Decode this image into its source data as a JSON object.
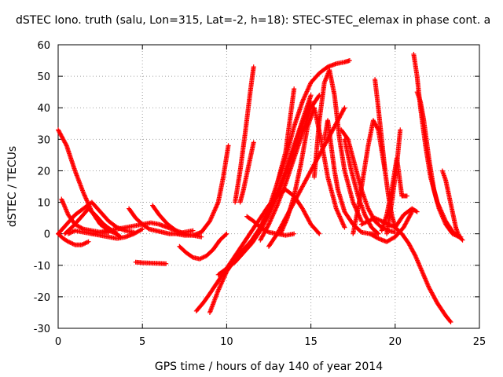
{
  "chart_data": {
    "type": "scatter",
    "title": "dSTEC Iono. truth (salu, Lon=315, Lat=-2, h=18): STEC-STEC_elemax in phase cont. a",
    "xlabel": "GPS time / hours of day 140 of year 2014",
    "ylabel": "dSTEC  / TECUs",
    "xlim": [
      0,
      25
    ],
    "ylim": [
      -30,
      60
    ],
    "xticks": [
      0,
      5,
      10,
      15,
      20,
      25
    ],
    "yticks": [
      -30,
      -20,
      -10,
      0,
      10,
      20,
      30,
      40,
      50,
      60
    ],
    "grid": true,
    "marker": "+",
    "color": "#ff0000",
    "series": [
      {
        "x": [
          0.0,
          0.5,
          1.0,
          1.5,
          2.0,
          2.5,
          3.0,
          3.5
        ],
        "y": [
          33,
          28,
          20,
          13,
          7,
          3,
          1,
          0
        ]
      },
      {
        "x": [
          0.2,
          0.6,
          1.0,
          1.5,
          2.0,
          2.5,
          3.0
        ],
        "y": [
          11,
          6,
          3,
          1.5,
          1,
          0.5,
          0.5
        ]
      },
      {
        "x": [
          0.0,
          0.3,
          0.6,
          1.0,
          1.4,
          1.8
        ],
        "y": [
          0,
          -1.5,
          -2.5,
          -3.5,
          -3.5,
          -2.5
        ]
      },
      {
        "x": [
          0.0,
          0.5,
          1.0,
          1.5,
          2.0,
          2.5,
          3.0,
          3.5,
          4.0,
          4.5
        ],
        "y": [
          0,
          3,
          6,
          8,
          10,
          7,
          4,
          2,
          1,
          0.5
        ]
      },
      {
        "x": [
          0.4,
          0.9,
          1.4,
          1.8,
          2.2,
          2.7,
          3.2,
          3.7
        ],
        "y": [
          0,
          2.5,
          5.5,
          8,
          6,
          3,
          1,
          -1
        ]
      },
      {
        "x": [
          0.6,
          1.0,
          1.5,
          2.0,
          2.5,
          3.0,
          3.5,
          4.0,
          4.5,
          5.0
        ],
        "y": [
          0,
          1,
          0.5,
          0,
          -0.5,
          -1,
          -1.5,
          -1,
          0,
          1.5
        ]
      },
      {
        "x": [
          2.0,
          2.5,
          3.0,
          3.5,
          4.0,
          4.5,
          5.0,
          5.5,
          6.0,
          6.5,
          7.0
        ],
        "y": [
          0,
          0.5,
          1,
          1.5,
          2,
          2.5,
          3,
          3.5,
          3,
          2,
          1
        ]
      },
      {
        "x": [
          4.2,
          4.6,
          5.0,
          5.4,
          5.8,
          6.2,
          6.6,
          7.0,
          7.5,
          8.0
        ],
        "y": [
          8,
          5,
          3,
          1.5,
          1,
          0.5,
          0,
          0,
          0.5,
          1
        ]
      },
      {
        "x": [
          4.6,
          5.0,
          5.5,
          6.0,
          6.4
        ],
        "y": [
          -9,
          -9.2,
          -9.3,
          -9.4,
          -9.5
        ]
      },
      {
        "x": [
          5.6,
          6.0,
          6.5,
          7.0,
          7.5,
          8.0,
          8.5
        ],
        "y": [
          9,
          6,
          3,
          1,
          0,
          -0.5,
          -1
        ]
      },
      {
        "x": [
          7.2,
          7.6,
          8.0,
          8.4,
          8.8,
          9.2,
          9.6,
          10.0
        ],
        "y": [
          -4,
          -6,
          -7.5,
          -8,
          -7,
          -5,
          -2,
          0
        ]
      },
      {
        "x": [
          7.0,
          7.5,
          8.0,
          8.5,
          9.0,
          9.5,
          9.8,
          10.1
        ],
        "y": [
          0,
          -0.5,
          -0.5,
          0.5,
          4,
          10,
          18,
          28
        ]
      },
      {
        "x": [
          8.2,
          8.6,
          9.0,
          9.5,
          10.0,
          10.5,
          11.0,
          11.5,
          12.0,
          12.5,
          13.0,
          13.5,
          14.0,
          14.5,
          15.0,
          15.5
        ],
        "y": [
          -24.5,
          -22,
          -19,
          -15,
          -11,
          -7,
          -3,
          1,
          5,
          9,
          12,
          14,
          12,
          8,
          3,
          0
        ]
      },
      {
        "x": [
          9.0,
          9.5,
          10.0,
          10.5,
          11.0,
          11.5,
          12.0,
          12.5,
          13.0,
          13.5,
          14.0,
          14.5,
          15.0
        ],
        "y": [
          -25,
          -18,
          -12,
          -8,
          -5,
          -2,
          2,
          7,
          13,
          20,
          28,
          36,
          44
        ]
      },
      {
        "x": [
          9.5,
          10.0,
          10.5,
          11.0,
          11.5,
          12.0,
          12.5,
          13.0,
          13.5,
          14.0,
          14.5,
          15.0
        ],
        "y": [
          -13,
          -11,
          -9,
          -6,
          -3,
          1,
          6,
          12,
          19,
          27,
          35,
          42
        ]
      },
      {
        "x": [
          10.5,
          10.8,
          11.1,
          11.4,
          11.6
        ],
        "y": [
          10,
          20,
          32,
          45,
          53
        ]
      },
      {
        "x": [
          10.8,
          11.0,
          11.2,
          11.4,
          11.6
        ],
        "y": [
          10,
          14,
          19,
          24,
          29
        ]
      },
      {
        "x": [
          11.2,
          11.6,
          12.0,
          12.5,
          13.0,
          13.5,
          14.0
        ],
        "y": [
          5.5,
          4,
          2,
          0.5,
          0,
          -0.5,
          0
        ]
      },
      {
        "x": [
          11.5,
          12.0,
          12.5,
          13.0,
          13.5,
          14.0
        ],
        "y": [
          -2,
          2,
          8,
          16,
          26,
          46
        ]
      },
      {
        "x": [
          12.0,
          12.5,
          13.0,
          13.5,
          14.0,
          14.5,
          15.0,
          15.5
        ],
        "y": [
          -2,
          3,
          9,
          16,
          24,
          32,
          40,
          44
        ]
      },
      {
        "x": [
          12.5,
          13.0,
          13.5,
          14.0,
          14.5,
          15.0,
          15.5,
          16.0,
          16.5,
          17.0
        ],
        "y": [
          -4,
          0,
          5,
          10,
          15,
          20,
          25,
          30,
          35,
          40
        ]
      },
      {
        "x": [
          13.0,
          13.5,
          14.0,
          14.5,
          15.0,
          15.5,
          16.0,
          16.5,
          17.0,
          17.3
        ],
        "y": [
          16,
          24,
          34,
          42,
          48,
          51,
          53,
          54,
          54.5,
          55
        ]
      },
      {
        "x": [
          13.2,
          13.6,
          14.0,
          14.4,
          14.8,
          15.2,
          15.6,
          16.0,
          16.5,
          17.0
        ],
        "y": [
          0,
          5,
          12,
          22,
          34,
          40,
          30,
          18,
          8,
          2
        ]
      },
      {
        "x": [
          15.2,
          15.5,
          15.8,
          16.1,
          16.4,
          16.7,
          17.0,
          17.5,
          18.0
        ],
        "y": [
          18,
          36,
          48,
          52,
          44,
          30,
          20,
          10,
          4
        ]
      },
      {
        "x": [
          15.8,
          16.0,
          16.2,
          16.4,
          16.6,
          17.0,
          17.5,
          18.0,
          18.5,
          19.0
        ],
        "y": [
          30,
          36,
          28,
          20,
          14,
          7,
          3,
          0.5,
          0,
          0
        ]
      },
      {
        "x": [
          16.8,
          17.2,
          17.6,
          18.0,
          18.4,
          18.8,
          19.2,
          19.6,
          20.0
        ],
        "y": [
          33,
          30,
          22,
          14,
          8,
          4,
          2,
          1,
          0.5
        ]
      },
      {
        "x": [
          17.0,
          17.4,
          17.8,
          18.2,
          18.6,
          19.0
        ],
        "y": [
          30,
          20,
          12,
          6,
          2,
          0
        ]
      },
      {
        "x": [
          17.5,
          17.8,
          18.1,
          18.4,
          18.7,
          19.0,
          19.4
        ],
        "y": [
          0,
          8,
          18,
          28,
          36,
          33,
          20
        ]
      },
      {
        "x": [
          18.0,
          18.4,
          18.8,
          19.2,
          19.6,
          20.0,
          20.4,
          20.8,
          21.2,
          21.6,
          22.0,
          22.5,
          23.0,
          23.3
        ],
        "y": [
          3,
          4,
          5,
          4,
          3,
          2,
          0,
          -3,
          -7,
          -12,
          -17,
          -22,
          -26,
          -28
        ]
      },
      {
        "x": [
          18.8,
          19.0,
          19.2,
          19.4,
          19.6,
          19.8,
          20.0
        ],
        "y": [
          49,
          40,
          30,
          20,
          12,
          6,
          2
        ]
      },
      {
        "x": [
          18.5,
          19.0,
          19.5,
          20.0,
          20.5,
          21.0
        ],
        "y": [
          0,
          -1.5,
          -2.5,
          -1,
          2,
          7
        ]
      },
      {
        "x": [
          19.2,
          19.5,
          19.8,
          20.1,
          20.4,
          20.7
        ],
        "y": [
          1,
          6,
          14,
          24,
          12,
          12
        ]
      },
      {
        "x": [
          19.5,
          19.8,
          20.1,
          20.3
        ],
        "y": [
          0,
          10,
          22,
          33
        ]
      },
      {
        "x": [
          20.0,
          20.5,
          21.0,
          21.3
        ],
        "y": [
          2,
          6,
          8,
          7
        ]
      },
      {
        "x": [
          21.1,
          21.3,
          21.5,
          21.8,
          22.1,
          22.5,
          23.0,
          23.5,
          23.9
        ],
        "y": [
          57,
          50,
          40,
          28,
          18,
          10,
          4,
          0,
          -1
        ]
      },
      {
        "x": [
          21.3,
          21.5,
          21.7,
          22.0,
          22.3,
          22.6,
          23.0,
          23.4,
          23.8
        ],
        "y": [
          45,
          42,
          36,
          24,
          14,
          8,
          3,
          0,
          -1
        ]
      },
      {
        "x": [
          22.8,
          23.0,
          23.2,
          23.4,
          23.6,
          23.8,
          24.0
        ],
        "y": [
          20,
          17,
          12,
          7,
          2,
          -1,
          -2
        ]
      }
    ]
  }
}
